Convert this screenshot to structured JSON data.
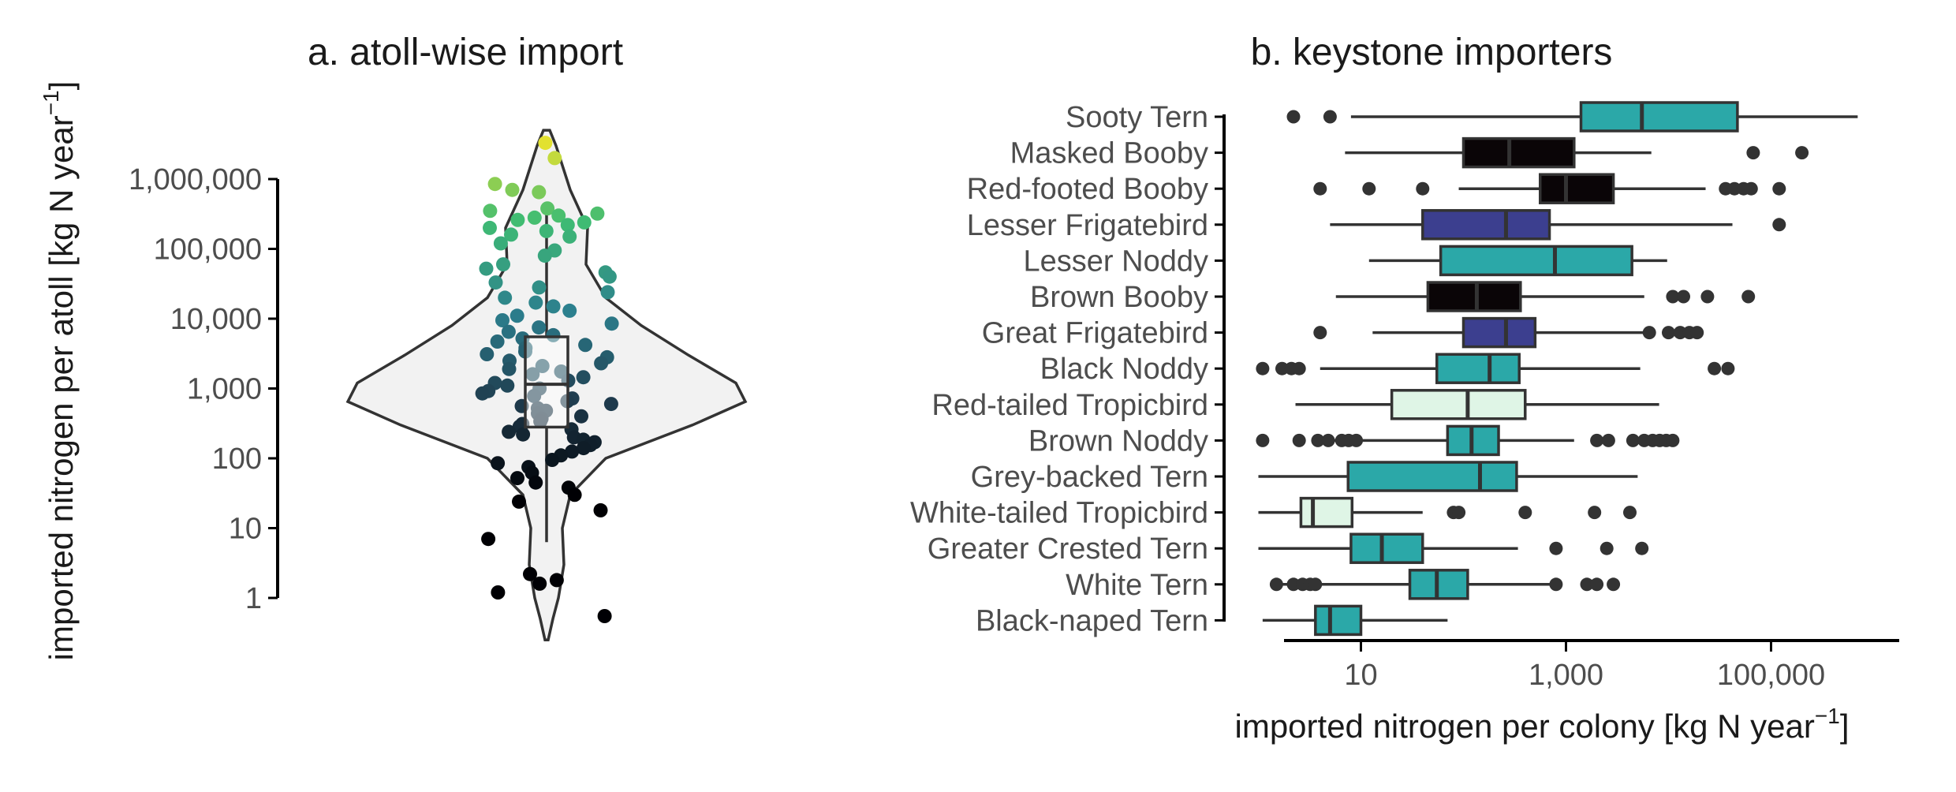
{
  "chart_data": [
    {
      "type": "violin-box-strip",
      "title": "a. atoll-wise import",
      "ylabel_main": "imported nitrogen per atoll [kg N  year",
      "ylabel_sup": "−1",
      "ylabel_close": "]",
      "yscale": "log10",
      "ylim": [
        0.3,
        5000000
      ],
      "yticks": [
        1,
        10,
        100,
        1000,
        10000,
        100000,
        1000000
      ],
      "ytick_labels": [
        "1",
        "10",
        "100",
        "1,000",
        "10,000",
        "100,000",
        "1,000,000"
      ],
      "box": {
        "min": 6.3,
        "q1": 280,
        "median": 1150,
        "q3": 5500,
        "max": 380000
      },
      "color_scale": [
        "#000004",
        "#1f3b4d",
        "#2c7f8e",
        "#3fbc73",
        "#fde725"
      ],
      "points": [
        3300000,
        2000000,
        850000,
        700000,
        650000,
        380000,
        350000,
        320000,
        300000,
        280000,
        260000,
        240000,
        220000,
        200000,
        180000,
        160000,
        150000,
        120000,
        95000,
        80000,
        60000,
        52000,
        46000,
        40000,
        33000,
        28000,
        24000,
        20000,
        17000,
        15000,
        13000,
        11000,
        9500,
        8500,
        7500,
        6500,
        5800,
        5200,
        4700,
        4200,
        3800,
        3400,
        3100,
        2800,
        2500,
        2300,
        2100,
        1900,
        1750,
        1600,
        1450,
        1300,
        1200,
        1100,
        1000,
        920,
        850,
        780,
        720,
        660,
        600,
        560,
        520,
        480,
        440,
        400,
        370,
        340,
        310,
        285,
        260,
        240,
        220,
        200,
        185,
        170,
        155,
        140,
        125,
        110,
        95,
        85,
        75,
        62,
        52,
        45,
        38,
        30,
        24,
        18,
        7,
        2.2,
        1.8,
        1.6,
        1.2,
        0.55
      ]
    },
    {
      "type": "boxplot-horizontal",
      "title": "b. keystone importers",
      "xlabel_main": "imported nitrogen per colony [kg N year",
      "xlabel_sup": "−1",
      "xlabel_close": "]",
      "xscale": "log10",
      "xlim": [
        1,
        800000
      ],
      "xticks": [
        10,
        1000,
        100000
      ],
      "xtick_labels": [
        "10",
        "1,000",
        "100,000"
      ],
      "categories": [
        "Sooty Tern",
        "Masked Booby",
        "Red-footed Booby",
        "Lesser Frigatebird",
        "Lesser Noddy",
        "Brown Booby",
        "Great Frigatebird",
        "Black Noddy",
        "Red-tailed Tropicbird",
        "Brown Noddy",
        "Grey-backed Tern",
        "White-tailed Tropicbird",
        "Greater Crested Tern",
        "White Tern",
        "Black-naped Tern"
      ],
      "boxes": [
        {
          "min": 8,
          "q1": 1400,
          "median": 5500,
          "q3": 47000,
          "max": 700000,
          "outliers": [
            2.2,
            5
          ],
          "color": "#2ba8a8"
        },
        {
          "min": 7,
          "q1": 100,
          "median": 280,
          "q3": 1200,
          "max": 6800,
          "outliers": [
            67000,
            200000
          ],
          "color": "#0a0507"
        },
        {
          "min": 90,
          "q1": 560,
          "median": 1000,
          "q3": 2900,
          "max": 23000,
          "outliers": [
            4,
            12,
            40,
            36000,
            44000,
            54000,
            64000,
            120000
          ],
          "color": "#0a0507"
        },
        {
          "min": 5,
          "q1": 40,
          "median": 260,
          "q3": 690,
          "max": 42000,
          "outliers": [
            120000
          ],
          "color": "#3c3f8f"
        },
        {
          "min": 12,
          "q1": 60,
          "median": 780,
          "q3": 4400,
          "max": 9700,
          "outliers": [],
          "color": "#2ba8a8"
        },
        {
          "min": 5.7,
          "q1": 45,
          "median": 135,
          "q3": 360,
          "max": 5800,
          "outliers": [
            11000,
            14000,
            24000,
            60000
          ],
          "color": "#0a0507"
        },
        {
          "min": 13,
          "q1": 100,
          "median": 260,
          "q3": 500,
          "max": 6500,
          "outliers": [
            4,
            6500,
            10000,
            13000,
            16000,
            19000
          ],
          "color": "#3c3f8f"
        },
        {
          "min": 4,
          "q1": 55,
          "median": 180,
          "q3": 350,
          "max": 5300,
          "outliers": [
            1.1,
            1.7,
            2.1,
            2.5,
            28000,
            38000
          ],
          "color": "#2ba8a8"
        },
        {
          "min": 2.3,
          "q1": 20,
          "median": 110,
          "q3": 400,
          "max": 8100,
          "outliers": [],
          "color": "#dff5e6"
        },
        {
          "min": 4,
          "q1": 70,
          "median": 120,
          "q3": 220,
          "max": 1200,
          "outliers": [
            1.1,
            2.5,
            3.8,
            4.8,
            6.5,
            7.6,
            9,
            2000,
            2600,
            4500,
            5800,
            7000,
            8200,
            9500,
            11000
          ],
          "color": "#2ba8a8"
        },
        {
          "min": 1,
          "q1": 7.5,
          "median": 145,
          "q3": 330,
          "max": 5000,
          "outliers": [],
          "color": "#2ba8a8"
        },
        {
          "min": 1,
          "q1": 2.6,
          "median": 3.4,
          "q3": 8.2,
          "max": 40,
          "outliers": [
            80,
            90,
            400,
            1900,
            4200
          ],
          "color": "#dff5e6"
        },
        {
          "min": 1,
          "q1": 8,
          "median": 16,
          "q3": 40,
          "max": 340,
          "outliers": [
            800,
            2500,
            5500
          ],
          "color": "#2ba8a8"
        },
        {
          "min": 1.5,
          "q1": 30,
          "median": 55,
          "q3": 110,
          "max": 800,
          "outliers": [
            1.5,
            2.2,
            2.7,
            3.2,
            3.6,
            800,
            1600,
            2000,
            2900
          ],
          "color": "#2ba8a8"
        },
        {
          "min": 1.1,
          "q1": 3.6,
          "median": 5,
          "q3": 10,
          "max": 70,
          "outliers": [],
          "color": "#2ba8a8"
        }
      ]
    }
  ]
}
